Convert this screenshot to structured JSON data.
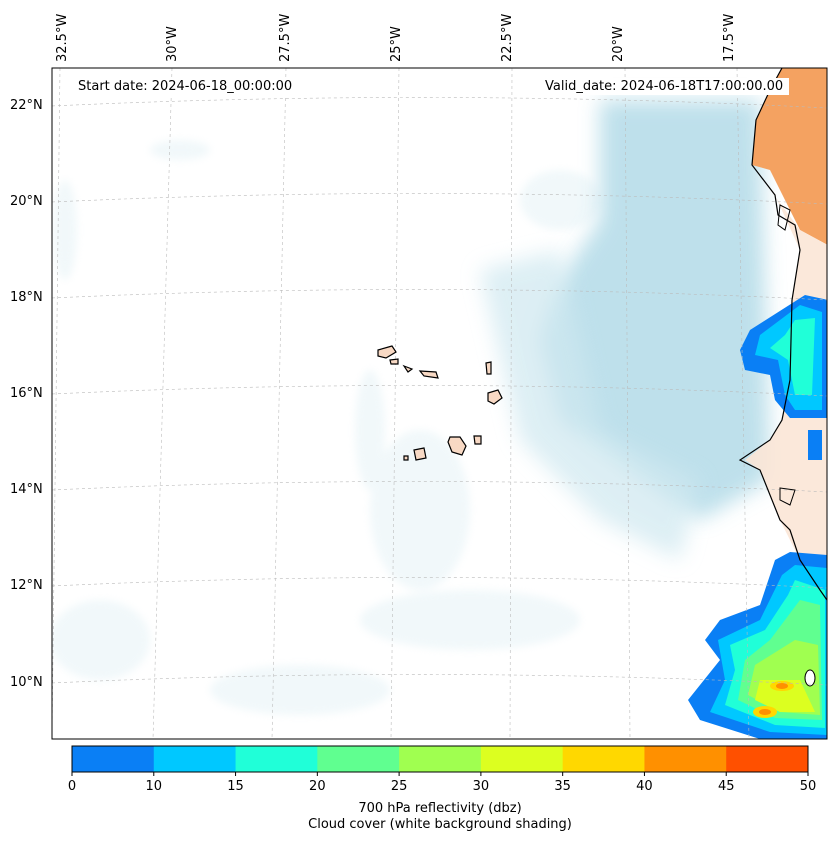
{
  "map": {
    "start_date": "Start date: 2024-06-18_00:00:00",
    "valid_date": "Valid_date: 2024-06-18T17:00:00.00",
    "lon_labels": [
      "32.5°W",
      "30°W",
      "27.5°W",
      "25°W",
      "22.5°W",
      "20°W",
      "17.5°W"
    ],
    "lat_labels": [
      "22°N",
      "20°N",
      "18°N",
      "16°N",
      "14°N",
      "12°N",
      "10°N"
    ],
    "extent": {
      "lon_min": -33.1,
      "lon_max": -15.2,
      "lat_min": 8.8,
      "lat_max": 22.8
    }
  },
  "colorbar": {
    "ticks": [
      "0",
      "10",
      "15",
      "20",
      "25",
      "30",
      "35",
      "40",
      "45",
      "50"
    ],
    "colors": [
      "#0a7ff5",
      "#00c8ff",
      "#20ffd8",
      "#60ff90",
      "#a0ff50",
      "#dcff20",
      "#ffd800",
      "#ff9000",
      "#ff5000"
    ],
    "title_line1": "700 hPa reflectivity (dbz)",
    "title_line2": "Cloud cover (white background shading)"
  },
  "colors": {
    "land_desert": "#f4a261",
    "land_pale": "#fbe6d6",
    "cloud": "#b7dde9",
    "ocean": "#ffffff"
  }
}
